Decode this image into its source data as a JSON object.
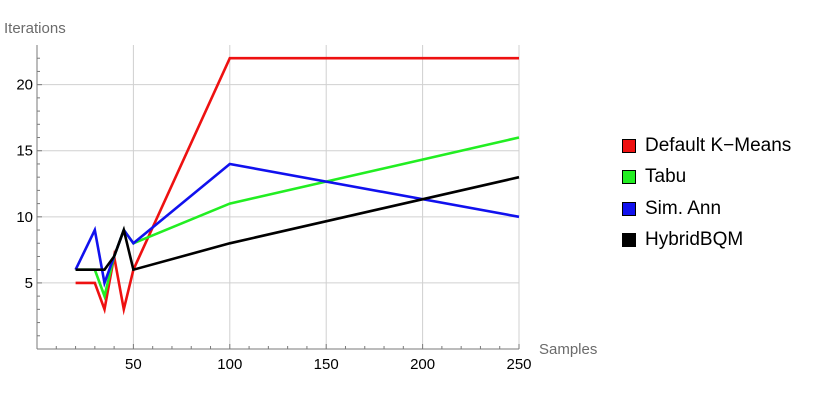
{
  "chart_data": {
    "type": "line",
    "xlabel": "Samples",
    "ylabel": "Iterations",
    "xlim": [
      0,
      250
    ],
    "ylim": [
      0,
      23
    ],
    "grid": true,
    "legend_position": "right",
    "x_ticks": [
      50,
      100,
      150,
      200,
      250
    ],
    "y_ticks": [
      5,
      10,
      15,
      20
    ],
    "x": [
      20,
      30,
      35,
      40,
      45,
      50,
      100,
      250
    ],
    "series": [
      {
        "name": "Default K−Means",
        "color": "#ee1111",
        "values": [
          5,
          5,
          3,
          7,
          3,
          6,
          22,
          22
        ]
      },
      {
        "name": "Tabu",
        "color": "#22ee22",
        "values": [
          6,
          6,
          4,
          7,
          9,
          8,
          11,
          16
        ]
      },
      {
        "name": "Sim. Ann",
        "color": "#1111ee",
        "values": [
          6,
          9,
          5,
          7,
          9,
          8,
          14,
          10
        ]
      },
      {
        "name": "HybridBQM",
        "color": "#000000",
        "values": [
          6,
          6,
          6,
          7,
          9,
          6,
          8,
          13
        ]
      }
    ]
  }
}
